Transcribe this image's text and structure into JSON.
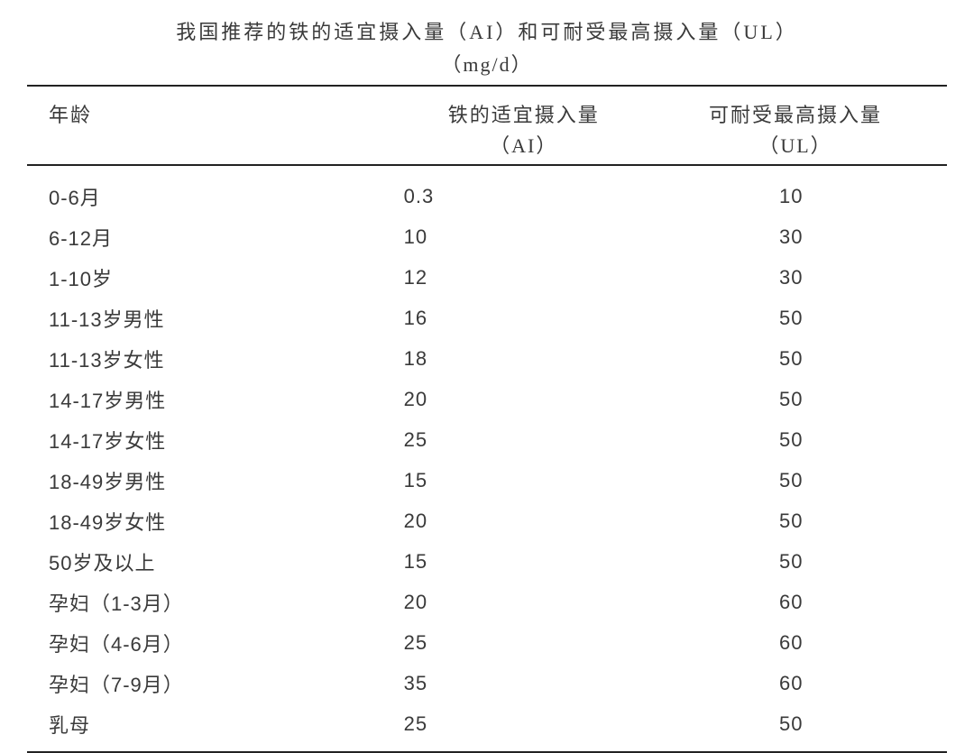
{
  "title": "我国推荐的铁的适宜摄入量（AI）和可耐受最高摄入量（UL）",
  "subtitle": "（mg/d）",
  "columns": {
    "age": "年龄",
    "ai_main": "铁的适宜摄入量",
    "ai_sub": "（AI）",
    "ul_main": "可耐受最高摄入量",
    "ul_sub": "（UL）"
  },
  "rows": [
    {
      "age": "0-6月",
      "ai": "0.3",
      "ul": "10"
    },
    {
      "age": "6-12月",
      "ai": "10",
      "ul": "30"
    },
    {
      "age": "1-10岁",
      "ai": "12",
      "ul": "30"
    },
    {
      "age": "11-13岁男性",
      "ai": "16",
      "ul": "50"
    },
    {
      "age": "11-13岁女性",
      "ai": "18",
      "ul": "50"
    },
    {
      "age": "14-17岁男性",
      "ai": "20",
      "ul": "50"
    },
    {
      "age": "14-17岁女性",
      "ai": "25",
      "ul": "50"
    },
    {
      "age": "18-49岁男性",
      "ai": "15",
      "ul": "50"
    },
    {
      "age": "18-49岁女性",
      "ai": "20",
      "ul": "50"
    },
    {
      "age": "50岁及以上",
      "ai": "15",
      "ul": "50"
    },
    {
      "age": "孕妇（1-3月）",
      "ai": "20",
      "ul": "60"
    },
    {
      "age": "孕妇（4-6月）",
      "ai": "25",
      "ul": "60"
    },
    {
      "age": "孕妇（7-9月）",
      "ai": "35",
      "ul": "60"
    },
    {
      "age": "乳母",
      "ai": "25",
      "ul": "50"
    }
  ],
  "style": {
    "font_family": "SimSun, 宋体, serif",
    "body_font_family": "SimHei, Microsoft YaHei, sans-serif",
    "text_color": "#3a3a3a",
    "background_color": "#ffffff",
    "rule_color": "#222222",
    "title_fontsize": 22,
    "body_fontsize": 22,
    "letter_spacing_title": 3,
    "letter_spacing_body": 1
  }
}
